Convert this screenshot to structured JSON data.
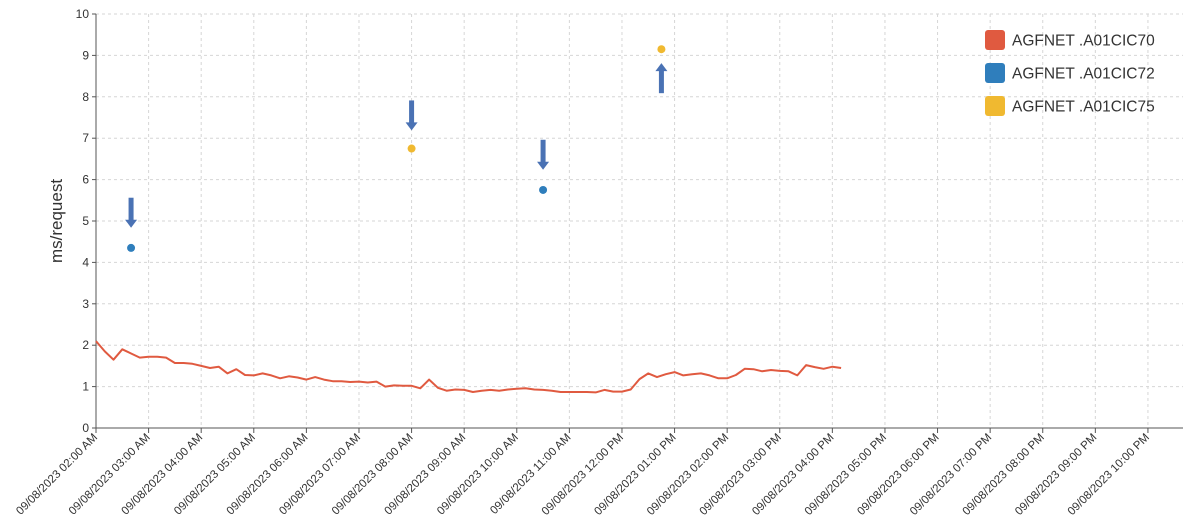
{
  "chart_data": {
    "type": "line",
    "title": "",
    "xlabel": "",
    "ylabel": "ms/request",
    "ylim": [
      0,
      10
    ],
    "yticks": [
      0,
      1,
      2,
      3,
      4,
      5,
      6,
      7,
      8,
      9,
      10
    ],
    "xlim": [
      "09/08/2023 02:00 AM",
      "09/08/2023 10:40 PM"
    ],
    "xticks": [
      "09/08/2023 02:00 AM",
      "09/08/2023 03:00 AM",
      "09/08/2023 04:00 AM",
      "09/08/2023 05:00 AM",
      "09/08/2023 06:00 AM",
      "09/08/2023 07:00 AM",
      "09/08/2023 08:00 AM",
      "09/08/2023 09:00 AM",
      "09/08/2023 10:00 AM",
      "09/08/2023 11:00 AM",
      "09/08/2023 12:00 PM",
      "09/08/2023 01:00 PM",
      "09/08/2023 02:00 PM",
      "09/08/2023 03:00 PM",
      "09/08/2023 04:00 PM",
      "09/08/2023 05:00 PM",
      "09/08/2023 06:00 PM",
      "09/08/2023 07:00 PM",
      "09/08/2023 08:00 PM",
      "09/08/2023 09:00 PM",
      "09/08/2023 10:00 PM"
    ],
    "grid": true,
    "legend_position": "top-right",
    "series": [
      {
        "name": "AGFNET .A01CIC70",
        "color": "#e05a40",
        "kind": "line",
        "points": [
          [
            "09/08/2023 02:00 AM",
            2.1
          ],
          [
            "09/08/2023 02:10 AM",
            1.85
          ],
          [
            "09/08/2023 02:20 AM",
            1.65
          ],
          [
            "09/08/2023 02:30 AM",
            1.9
          ],
          [
            "09/08/2023 02:40 AM",
            1.8
          ],
          [
            "09/08/2023 02:50 AM",
            1.7
          ],
          [
            "09/08/2023 03:00 AM",
            1.72
          ],
          [
            "09/08/2023 03:10 AM",
            1.72
          ],
          [
            "09/08/2023 03:20 AM",
            1.7
          ],
          [
            "09/08/2023 03:30 AM",
            1.57
          ],
          [
            "09/08/2023 03:40 AM",
            1.57
          ],
          [
            "09/08/2023 03:50 AM",
            1.55
          ],
          [
            "09/08/2023 04:00 AM",
            1.5
          ],
          [
            "09/08/2023 04:10 AM",
            1.45
          ],
          [
            "09/08/2023 04:20 AM",
            1.48
          ],
          [
            "09/08/2023 04:30 AM",
            1.32
          ],
          [
            "09/08/2023 04:40 AM",
            1.42
          ],
          [
            "09/08/2023 04:50 AM",
            1.28
          ],
          [
            "09/08/2023 05:00 AM",
            1.27
          ],
          [
            "09/08/2023 05:10 AM",
            1.32
          ],
          [
            "09/08/2023 05:20 AM",
            1.27
          ],
          [
            "09/08/2023 05:30 AM",
            1.2
          ],
          [
            "09/08/2023 05:40 AM",
            1.25
          ],
          [
            "09/08/2023 05:50 AM",
            1.22
          ],
          [
            "09/08/2023 06:00 AM",
            1.17
          ],
          [
            "09/08/2023 06:10 AM",
            1.23
          ],
          [
            "09/08/2023 06:20 AM",
            1.17
          ],
          [
            "09/08/2023 06:30 AM",
            1.13
          ],
          [
            "09/08/2023 06:40 AM",
            1.13
          ],
          [
            "09/08/2023 06:50 AM",
            1.11
          ],
          [
            "09/08/2023 07:00 AM",
            1.12
          ],
          [
            "09/08/2023 07:10 AM",
            1.1
          ],
          [
            "09/08/2023 07:20 AM",
            1.12
          ],
          [
            "09/08/2023 07:30 AM",
            1.0
          ],
          [
            "09/08/2023 07:40 AM",
            1.03
          ],
          [
            "09/08/2023 07:50 AM",
            1.02
          ],
          [
            "09/08/2023 08:00 AM",
            1.02
          ],
          [
            "09/08/2023 08:10 AM",
            0.96
          ],
          [
            "09/08/2023 08:20 AM",
            1.17
          ],
          [
            "09/08/2023 08:30 AM",
            0.97
          ],
          [
            "09/08/2023 08:40 AM",
            0.9
          ],
          [
            "09/08/2023 08:50 AM",
            0.93
          ],
          [
            "09/08/2023 09:00 AM",
            0.92
          ],
          [
            "09/08/2023 09:10 AM",
            0.87
          ],
          [
            "09/08/2023 09:20 AM",
            0.9
          ],
          [
            "09/08/2023 09:30 AM",
            0.92
          ],
          [
            "09/08/2023 09:40 AM",
            0.9
          ],
          [
            "09/08/2023 09:50 AM",
            0.93
          ],
          [
            "09/08/2023 10:00 AM",
            0.95
          ],
          [
            "09/08/2023 10:10 AM",
            0.96
          ],
          [
            "09/08/2023 10:20 AM",
            0.93
          ],
          [
            "09/08/2023 10:30 AM",
            0.92
          ],
          [
            "09/08/2023 10:40 AM",
            0.9
          ],
          [
            "09/08/2023 10:50 AM",
            0.87
          ],
          [
            "09/08/2023 11:00 AM",
            0.87
          ],
          [
            "09/08/2023 11:10 AM",
            0.87
          ],
          [
            "09/08/2023 11:20 AM",
            0.87
          ],
          [
            "09/08/2023 11:30 AM",
            0.86
          ],
          [
            "09/08/2023 11:40 AM",
            0.92
          ],
          [
            "09/08/2023 11:50 AM",
            0.88
          ],
          [
            "09/08/2023 12:00 PM",
            0.88
          ],
          [
            "09/08/2023 12:10 PM",
            0.93
          ],
          [
            "09/08/2023 12:20 PM",
            1.18
          ],
          [
            "09/08/2023 12:30 PM",
            1.32
          ],
          [
            "09/08/2023 12:40 PM",
            1.23
          ],
          [
            "09/08/2023 12:50 PM",
            1.3
          ],
          [
            "09/08/2023 01:00 PM",
            1.35
          ],
          [
            "09/08/2023 01:10 PM",
            1.27
          ],
          [
            "09/08/2023 01:20 PM",
            1.3
          ],
          [
            "09/08/2023 01:30 PM",
            1.32
          ],
          [
            "09/08/2023 01:40 PM",
            1.27
          ],
          [
            "09/08/2023 01:50 PM",
            1.2
          ],
          [
            "09/08/2023 02:00 PM",
            1.2
          ],
          [
            "09/08/2023 02:10 PM",
            1.28
          ],
          [
            "09/08/2023 02:20 PM",
            1.43
          ],
          [
            "09/08/2023 02:30 PM",
            1.42
          ],
          [
            "09/08/2023 02:40 PM",
            1.37
          ],
          [
            "09/08/2023 02:50 PM",
            1.4
          ],
          [
            "09/08/2023 03:00 PM",
            1.38
          ],
          [
            "09/08/2023 03:10 PM",
            1.37
          ],
          [
            "09/08/2023 03:20 PM",
            1.27
          ],
          [
            "09/08/2023 03:30 PM",
            1.52
          ],
          [
            "09/08/2023 03:40 PM",
            1.47
          ],
          [
            "09/08/2023 03:50 PM",
            1.43
          ],
          [
            "09/08/2023 04:00 PM",
            1.48
          ],
          [
            "09/08/2023 04:10 PM",
            1.45
          ]
        ]
      },
      {
        "name": "AGFNET .A01CIC72",
        "color": "#2f7ebc",
        "kind": "marker",
        "points": [
          [
            "09/08/2023 02:40 AM",
            4.35
          ],
          [
            "09/08/2023 10:30 AM",
            5.75
          ]
        ]
      },
      {
        "name": "AGFNET .A01CIC75",
        "color": "#f0b930",
        "kind": "marker",
        "points": [
          [
            "09/08/2023 08:00 AM",
            6.75
          ],
          [
            "09/08/2023 12:45 PM",
            9.15
          ]
        ]
      }
    ],
    "annotations": [
      {
        "type": "arrow",
        "direction": "down",
        "color": "#4a72b4",
        "at": [
          "09/08/2023 02:40 AM",
          5.2
        ]
      },
      {
        "type": "arrow",
        "direction": "down",
        "color": "#4a72b4",
        "at": [
          "09/08/2023 08:00 AM",
          7.55
        ]
      },
      {
        "type": "arrow",
        "direction": "down",
        "color": "#4a72b4",
        "at": [
          "09/08/2023 10:30 AM",
          6.6
        ]
      },
      {
        "type": "arrow",
        "direction": "up",
        "color": "#4a72b4",
        "at": [
          "09/08/2023 12:45 PM",
          8.45
        ]
      }
    ]
  }
}
